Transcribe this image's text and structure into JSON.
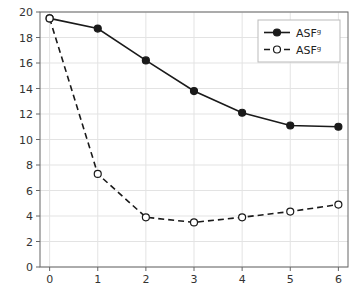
{
  "chart_data": {
    "type": "line",
    "x": [
      0,
      1,
      2,
      3,
      4,
      5,
      6
    ],
    "series": [
      {
        "name": "ASFᵍ",
        "color": "#1a1a1a",
        "line_style": "solid",
        "marker": "filled-circle",
        "values": [
          19.5,
          18.7,
          16.2,
          13.8,
          12.1,
          11.1,
          11.0
        ]
      },
      {
        "name": "ASFᵍ",
        "color": "#1a1a1a",
        "line_style": "dashed",
        "marker": "open-circle",
        "values": [
          19.5,
          7.3,
          3.9,
          3.5,
          3.9,
          4.35,
          4.9
        ]
      }
    ],
    "xlim": [
      -0.2,
      6.2
    ],
    "ylim": [
      0,
      20
    ],
    "xticks": [
      0,
      1,
      2,
      3,
      4,
      5,
      6
    ],
    "yticks": [
      0,
      2,
      4,
      6,
      8,
      10,
      12,
      14,
      16,
      18,
      20
    ],
    "grid": true,
    "legend": "upper right"
  }
}
